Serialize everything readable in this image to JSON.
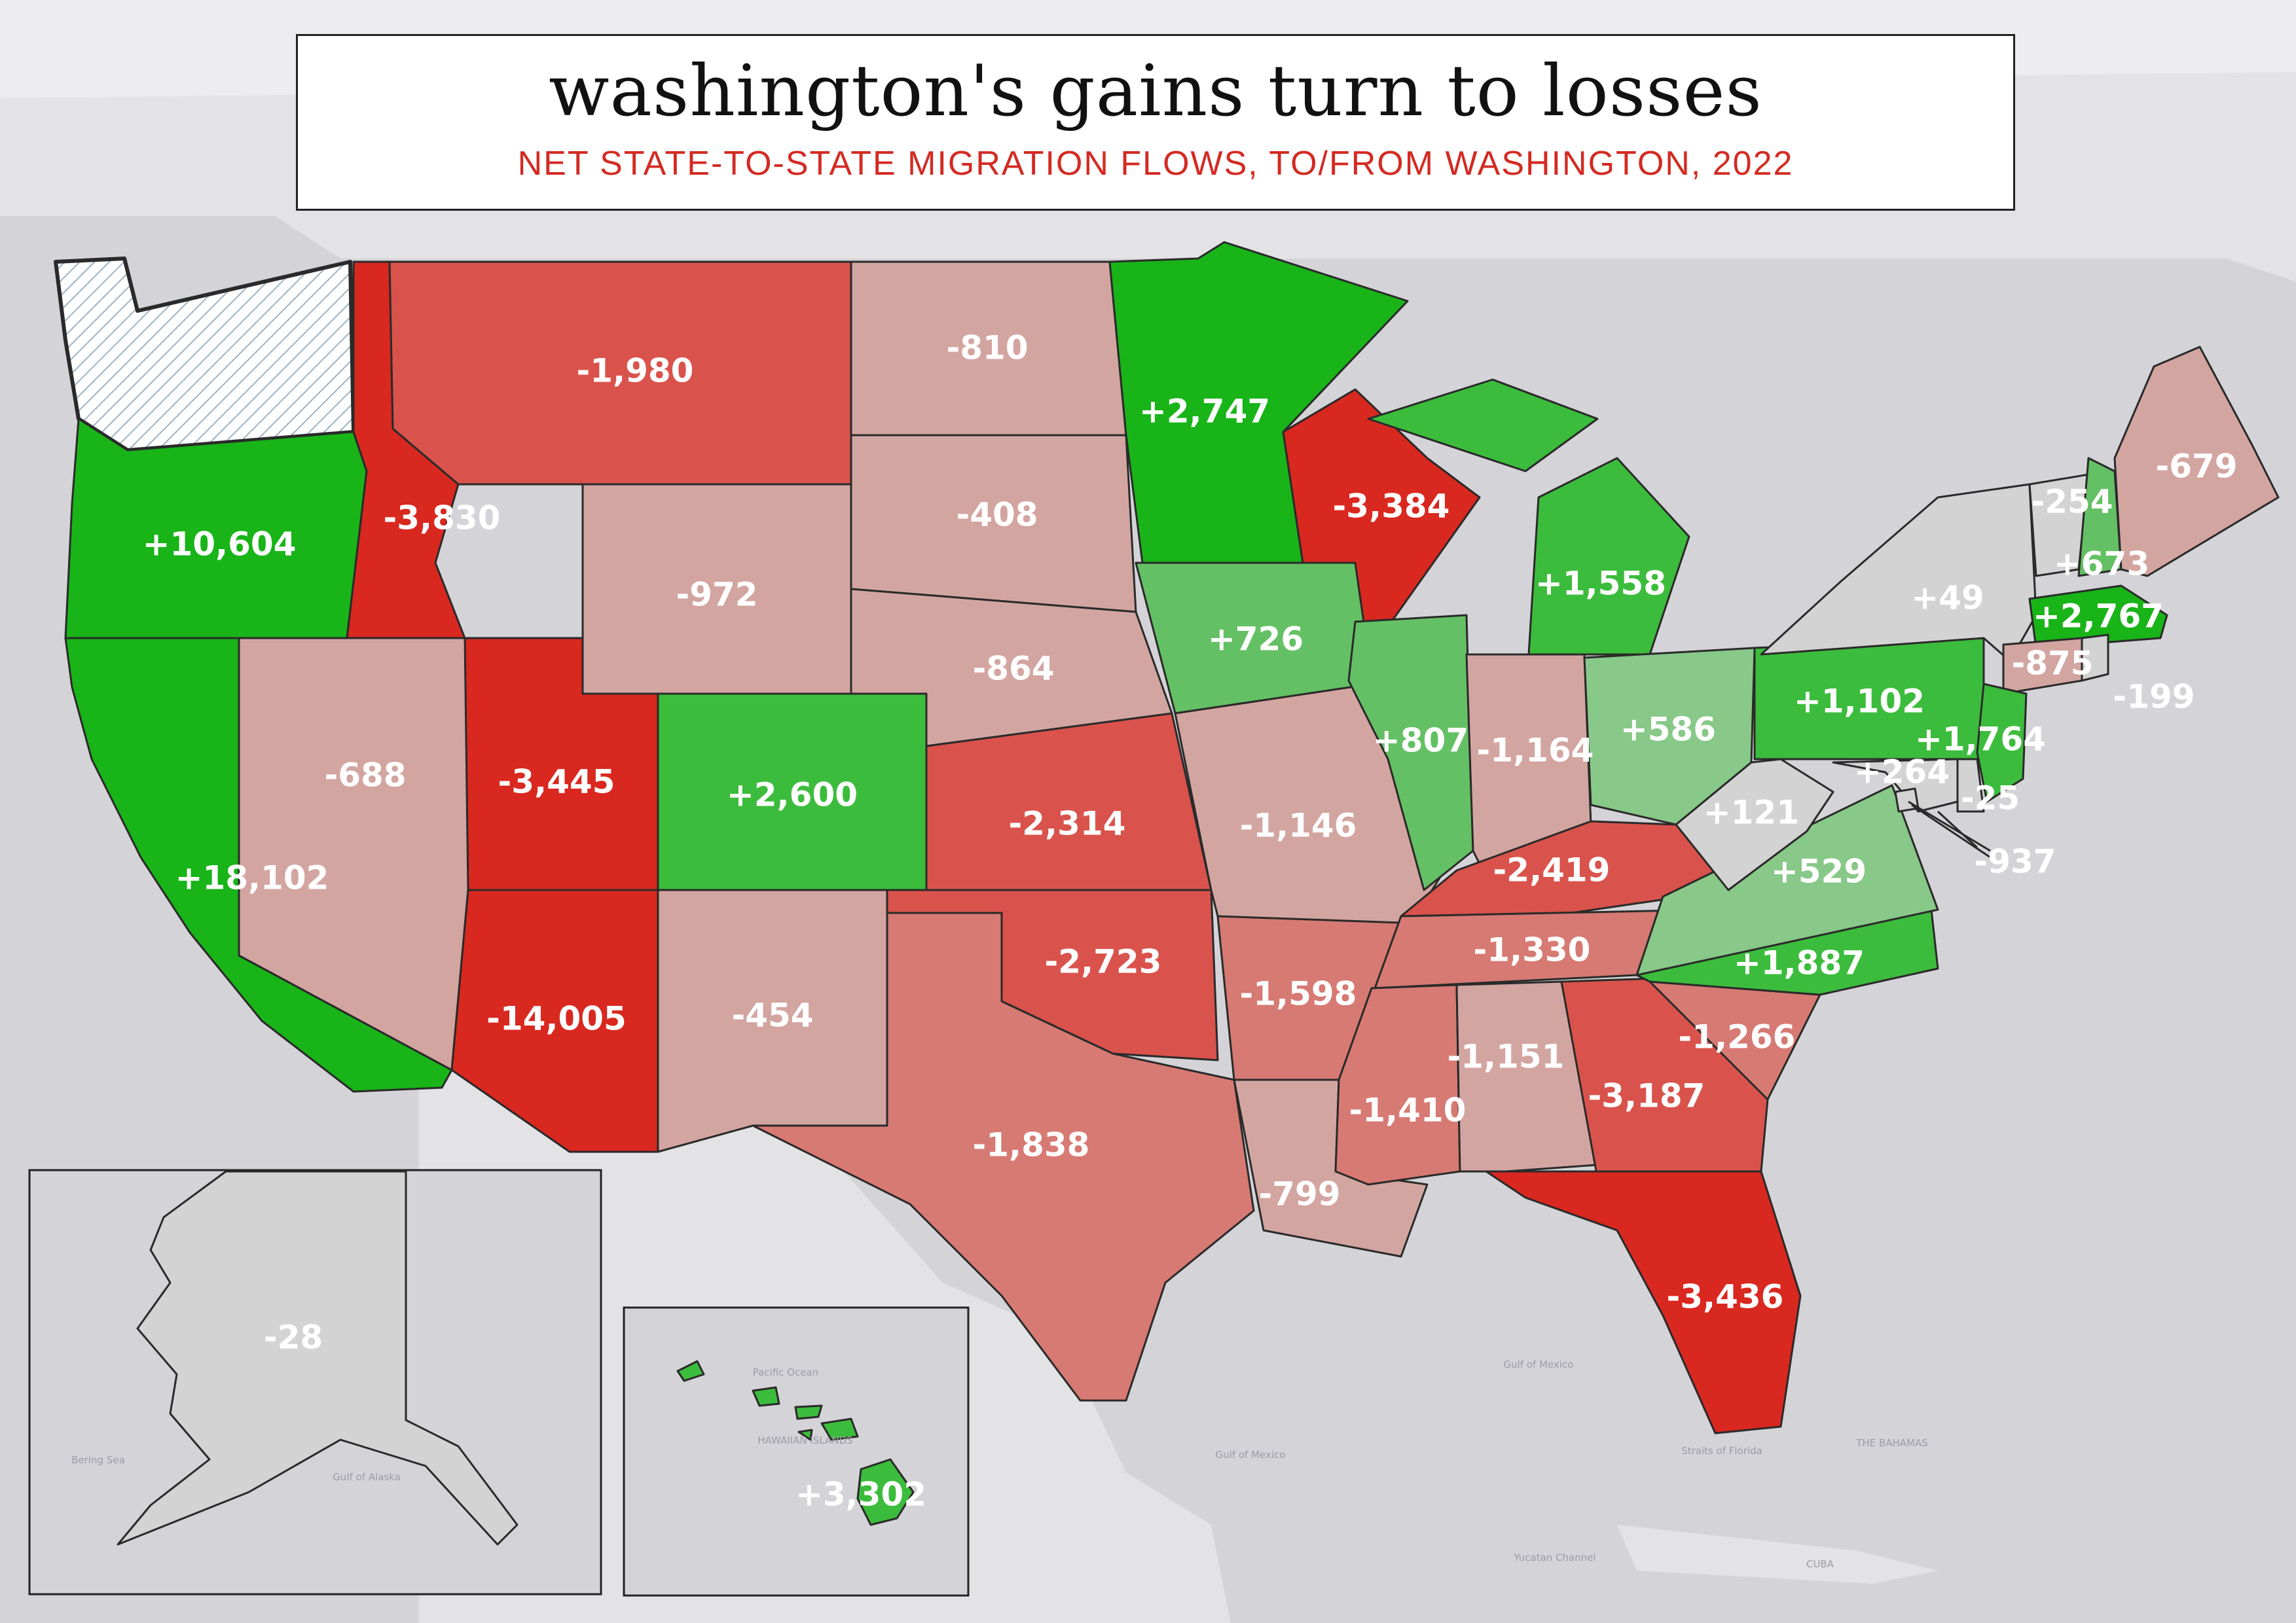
{
  "title": "washington's gains turn to losses",
  "subtitle": "NET STATE-TO-STATE MIGRATION FLOWS, TO/FROM WASHINGTON, 2022",
  "background_labels": {
    "pacific_ocean": "Pacific Ocean",
    "hawaiian_islands": "HAWAIIAN ISLANDS",
    "gulf_of_mexico_1": "Gulf of Mexico",
    "gulf_of_mexico_2": "Gulf of Mexico",
    "bahamas": "THE BAHAMAS",
    "cuba": "CUBA",
    "yucatan_channel": "Yucatan Channel",
    "straits_of_florida": "Straits of Florida",
    "bering_sea": "Bering Sea",
    "gulf_of_alaska": "Gulf of Alaska"
  },
  "colors": {
    "dark_green": "#18b418",
    "medium_green": "#3cbc3c",
    "light_green": "#64c064",
    "pale_green": "#88c888",
    "neutral": "#d3d3d3",
    "pale_red": "#d3a5a1",
    "light_red": "#d67a73",
    "medium_red": "#d9534c",
    "dark_red": "#d9281f",
    "washington_outline": "#1a5e8a"
  },
  "states": {
    "OR": {
      "value": "+10,604",
      "color": "dark_green"
    },
    "CA": {
      "value": "+18,102",
      "color": "dark_green"
    },
    "ID": {
      "value": "-3,830",
      "color": "dark_red"
    },
    "NV": {
      "value": "-688",
      "color": "pale_red"
    },
    "MT": {
      "value": "-1,980",
      "color": "medium_red"
    },
    "WY": {
      "value": "-972",
      "color": "pale_red"
    },
    "UT": {
      "value": "-3,445",
      "color": "dark_red"
    },
    "AZ": {
      "value": "-14,005",
      "color": "dark_red"
    },
    "CO": {
      "value": "+2,600",
      "color": "medium_green"
    },
    "NM": {
      "value": "-454",
      "color": "pale_red"
    },
    "ND": {
      "value": "-810",
      "color": "pale_red"
    },
    "SD": {
      "value": "-408",
      "color": "pale_red"
    },
    "NE": {
      "value": "-864",
      "color": "pale_red"
    },
    "KS": {
      "value": "-2,314",
      "color": "medium_red"
    },
    "OK": {
      "value": "-2,723",
      "color": "medium_red"
    },
    "TX": {
      "value": "-1,838",
      "color": "light_red"
    },
    "MN": {
      "value": "+2,747",
      "color": "dark_green"
    },
    "IA": {
      "value": "+726",
      "color": "light_green"
    },
    "MO": {
      "value": "-1,146",
      "color": "pale_red"
    },
    "AR": {
      "value": "-1,598",
      "color": "light_red"
    },
    "LA": {
      "value": "-799",
      "color": "pale_red"
    },
    "WI": {
      "value": "-3,384",
      "color": "dark_red"
    },
    "IL": {
      "value": "+807",
      "color": "light_green"
    },
    "MI": {
      "value": "+1,558",
      "color": "medium_green"
    },
    "IN": {
      "value": "-1,164",
      "color": "pale_red"
    },
    "OH": {
      "value": "+586",
      "color": "pale_green"
    },
    "KY": {
      "value": "-2,419",
      "color": "medium_red"
    },
    "TN": {
      "value": "-1,330",
      "color": "light_red"
    },
    "MS": {
      "value": "-1,410",
      "color": "light_red"
    },
    "AL": {
      "value": "-1,151",
      "color": "pale_red"
    },
    "GA": {
      "value": "-3,187",
      "color": "medium_red"
    },
    "FL": {
      "value": "-3,436",
      "color": "dark_red"
    },
    "SC": {
      "value": "-1,266",
      "color": "light_red"
    },
    "NC": {
      "value": "+1,887",
      "color": "medium_green"
    },
    "VA": {
      "value": "+529",
      "color": "pale_green"
    },
    "WV": {
      "value": "+121",
      "color": "neutral"
    },
    "PA": {
      "value": "+1,102",
      "color": "medium_green"
    },
    "NY": {
      "value": "+49",
      "color": "neutral"
    },
    "VT": {
      "value": "-254",
      "color": "neutral"
    },
    "NH": {
      "value": "+673",
      "color": "light_green"
    },
    "ME": {
      "value": "-679",
      "color": "pale_red"
    },
    "MA": {
      "value": "+2,767",
      "color": "dark_green"
    },
    "CT": {
      "value": "-875",
      "color": "pale_red"
    },
    "RI": {
      "value": "-199",
      "color": "neutral"
    },
    "NJ": {
      "value": "+1,764",
      "color": "medium_green"
    },
    "MD": {
      "value": "+264",
      "color": "neutral"
    },
    "DE": {
      "value": "-25",
      "color": "neutral"
    },
    "DC": {
      "value": "-937",
      "color": "neutral"
    },
    "AK": {
      "value": "-28",
      "color": "neutral"
    },
    "HI": {
      "value": "+3,302",
      "color": "medium_green"
    }
  }
}
